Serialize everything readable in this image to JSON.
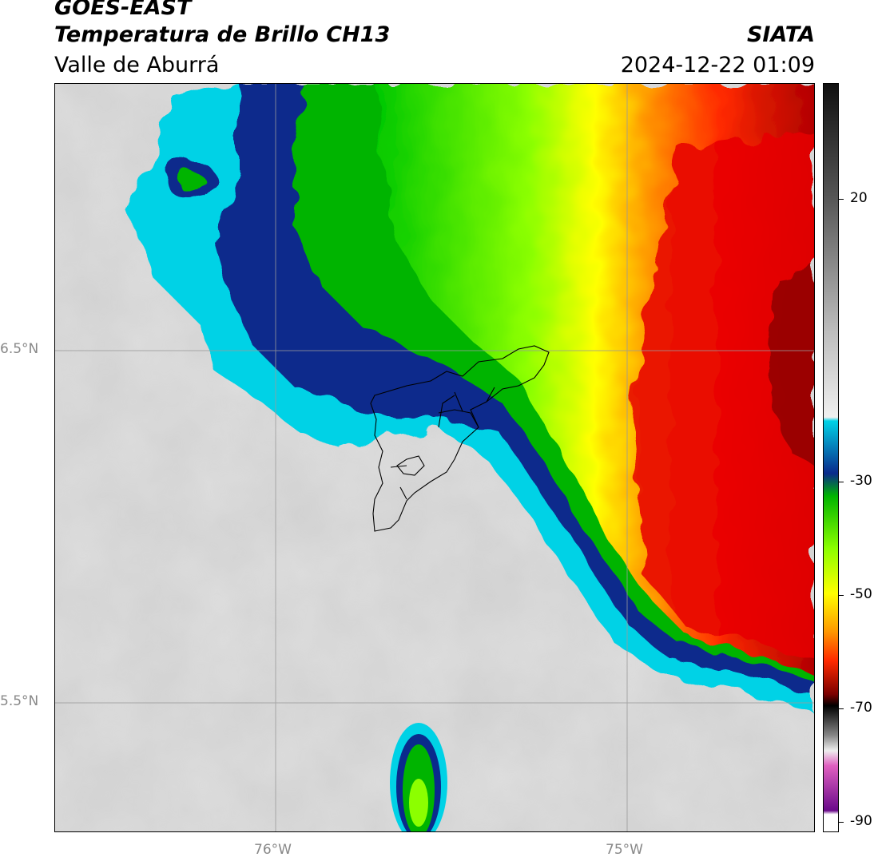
{
  "header": {
    "satellite": "GOES-EAST",
    "product": "Temperatura de Brillo CH13",
    "region": "Valle de Aburrá",
    "brand": "SIATA",
    "timestamp": "2024-12-22 01:09"
  },
  "map": {
    "lat_labels": [
      "6.5°N",
      "5.5°N"
    ],
    "lon_labels": [
      "76°W",
      "75°W"
    ],
    "gridlines": true,
    "overlay": "municipal boundaries of Valle de Aburrá"
  },
  "colorbar": {
    "tick_labels": [
      "20",
      "-30",
      "-50",
      "-70",
      "-90"
    ],
    "palette": {
      "warm_low": "#ffffff",
      "warm_high": "#1a1a1a",
      "cyan": "#00d2e6",
      "blue": "#0a2a8c",
      "green": "#00b400",
      "lime": "#8cff00",
      "yellow": "#ffff00",
      "orange": "#ff8c00",
      "red": "#e60000",
      "dark_red": "#7a0000",
      "black": "#000000",
      "magenta": "#c040c0",
      "purple": "#6a0a8a"
    }
  }
}
